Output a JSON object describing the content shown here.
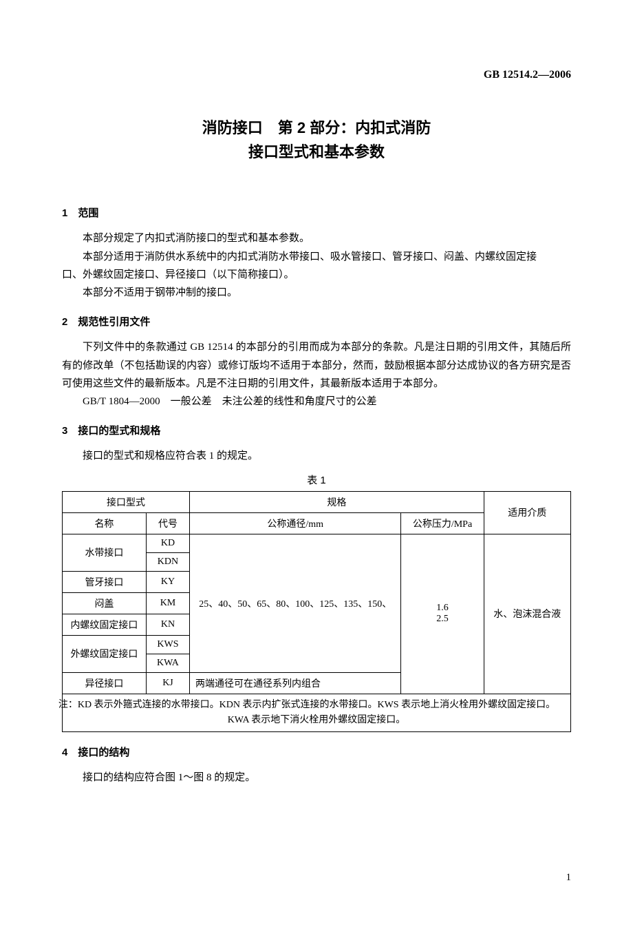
{
  "doc_code": "GB 12514.2—2006",
  "title_line1": "消防接口　第 2 部分：内扣式消防",
  "title_line2": "接口型式和基本参数",
  "sections": {
    "s1_heading": "1　范围",
    "s1_p1": "本部分规定了内扣式消防接口的型式和基本参数。",
    "s1_p2": "本部分适用于消防供水系统中的内扣式消防水带接口、吸水管接口、管牙接口、闷盖、内螺纹固定接",
    "s1_p2b": "口、外螺纹固定接口、异径接口（以下简称接口）。",
    "s1_p3": "本部分不适用于钢带冲制的接口。",
    "s2_heading": "2　规范性引用文件",
    "s2_p1": "下列文件中的条款通过 GB 12514 的本部分的引用而成为本部分的条款。凡是注日期的引用文件，其随后所有的修改单（不包括勘误的内容）或修订版均不适用于本部分，然而，鼓励根据本部分达成协议的各方研究是否可使用这些文件的最新版本。凡是不注日期的引用文件，其最新版本适用于本部分。",
    "s2_p2": "GB/T 1804—2000　一般公差　未注公差的线性和角度尺寸的公差",
    "s3_heading": "3　接口的型式和规格",
    "s3_p1": "接口的型式和规格应符合表 1 的规定。",
    "s4_heading": "4　接口的结构",
    "s4_p1": "接口的结构应符合图 1～图 8 的规定。"
  },
  "table": {
    "caption": "表 1",
    "header": {
      "type": "接口型式",
      "spec": "规格",
      "medium": "适用介质",
      "name": "名称",
      "code": "代号",
      "dn": "公称通径/mm",
      "pressure": "公称压力/MPa"
    },
    "rows": {
      "r1_name": "水带接口",
      "r1_code1": "KD",
      "r1_code2": "KDN",
      "r2_name": "管牙接口",
      "r2_code": "KY",
      "r3_name": "闷盖",
      "r3_code": "KM",
      "r4_name": "内螺纹固定接口",
      "r4_code": "KN",
      "r5_name": "外螺纹固定接口",
      "r5_code1": "KWS",
      "r5_code2": "KWA",
      "r6_name": "异径接口",
      "r6_code": "KJ",
      "dn_values": "25、40、50、65、80、100、125、135、150、",
      "dn_alt": "两端通径可在通径系列内组合",
      "pressure_values_1": "1.6",
      "pressure_values_2": "2.5",
      "medium_value": "水、泡沫混合液"
    },
    "note": "注：KD 表示外箍式连接的水带接口。KDN 表示内扩张式连接的水带接口。KWS 表示地上消火栓用外螺纹固定接口。KWA 表示地下消火栓用外螺纹固定接口。"
  },
  "page_number": "1"
}
